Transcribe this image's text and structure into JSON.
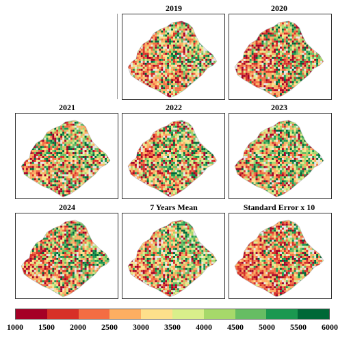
{
  "panels": [
    {
      "id": "p2019",
      "title": "2019",
      "mix": [
        0.35,
        0.45,
        0.2
      ]
    },
    {
      "id": "p2020",
      "title": "2020",
      "mix": [
        0.45,
        0.35,
        0.2
      ]
    },
    {
      "id": "p2021",
      "title": "2021",
      "mix": [
        0.3,
        0.4,
        0.3
      ]
    },
    {
      "id": "p2022",
      "title": "2022",
      "mix": [
        0.3,
        0.45,
        0.25
      ]
    },
    {
      "id": "p2023",
      "title": "2023",
      "mix": [
        0.25,
        0.45,
        0.3
      ]
    },
    {
      "id": "p2024",
      "title": "2024",
      "mix": [
        0.35,
        0.4,
        0.25
      ]
    },
    {
      "id": "pmean",
      "title": "7 Years Mean",
      "mix": [
        0.25,
        0.5,
        0.25
      ]
    },
    {
      "id": "pse",
      "title": "Standard Error x 10",
      "mix": [
        0.55,
        0.3,
        0.15
      ]
    }
  ],
  "legend": {
    "colors": [
      "#a50026",
      "#d73027",
      "#f46d43",
      "#fdae61",
      "#fee08b",
      "#d9ef8b",
      "#a6d96a",
      "#66bd63",
      "#1a9850",
      "#006837"
    ],
    "labels": [
      "1000",
      "1500",
      "2000",
      "2500",
      "3000",
      "3500",
      "4000",
      "4500",
      "5000",
      "5500",
      "6000"
    ]
  }
}
